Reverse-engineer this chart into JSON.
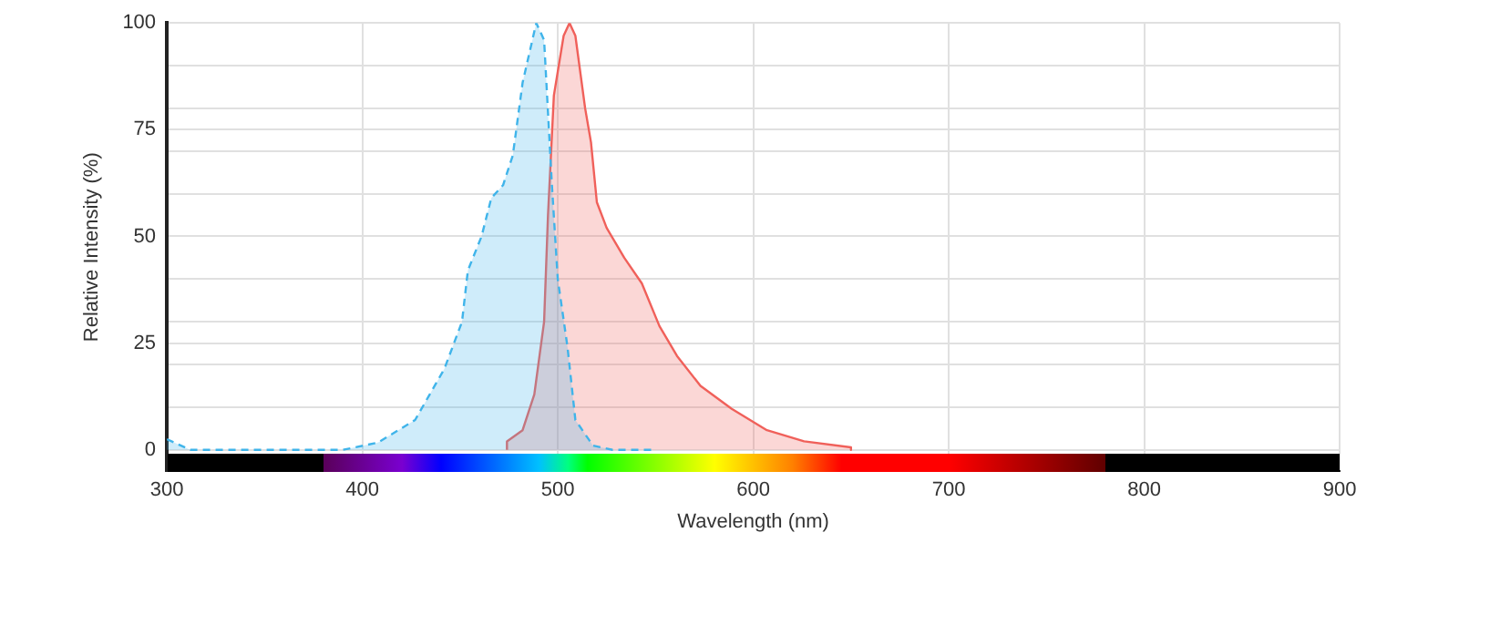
{
  "chart_data": {
    "type": "area",
    "xlabel": "Wavelength (nm)",
    "ylabel": "Relative Intensity (%)",
    "xlim": [
      300,
      900
    ],
    "xticks": [
      300,
      400,
      500,
      600,
      700,
      800,
      900
    ],
    "ylim": [
      -5,
      100
    ],
    "yticks": [
      0,
      {
        "value": 10,
        "label": null
      },
      {
        "value": 20,
        "label": null
      },
      25,
      {
        "value": 30,
        "label": null
      },
      {
        "value": 40,
        "label": null
      },
      50,
      {
        "value": 60,
        "label": null
      },
      {
        "value": 70,
        "label": null
      },
      75,
      {
        "value": 80,
        "label": null
      },
      {
        "value": 90,
        "label": null
      },
      100
    ],
    "grid": true,
    "marker": "none",
    "series": [
      {
        "color": "#3fb4ea",
        "line_style": "dashed",
        "x": [
          300,
          312,
          390,
          408,
          427,
          442,
          451,
          454,
          461,
          466,
          472,
          477,
          482,
          489,
          493,
          497,
          500,
          505,
          509,
          518,
          528,
          549
        ],
        "values": [
          2.5,
          0,
          0,
          1.7,
          7,
          19,
          30,
          42,
          50,
          59,
          62,
          69,
          86,
          100,
          96,
          62,
          40,
          24,
          7,
          1,
          0,
          0
        ]
      },
      {
        "color": "#f0605a",
        "line_style": "solid",
        "x": [
          474,
          474,
          482,
          488,
          493,
          495,
          498,
          503,
          506,
          509,
          514,
          517,
          520,
          525,
          534,
          543,
          552,
          561,
          573,
          589,
          607,
          626,
          650,
          650
        ],
        "values": [
          0,
          2,
          4.6,
          13,
          30,
          55,
          83,
          97,
          100,
          97,
          80,
          72,
          58,
          52,
          45,
          39,
          29,
          22,
          15,
          9.6,
          4.6,
          2,
          0.6,
          0
        ]
      }
    ]
  }
}
